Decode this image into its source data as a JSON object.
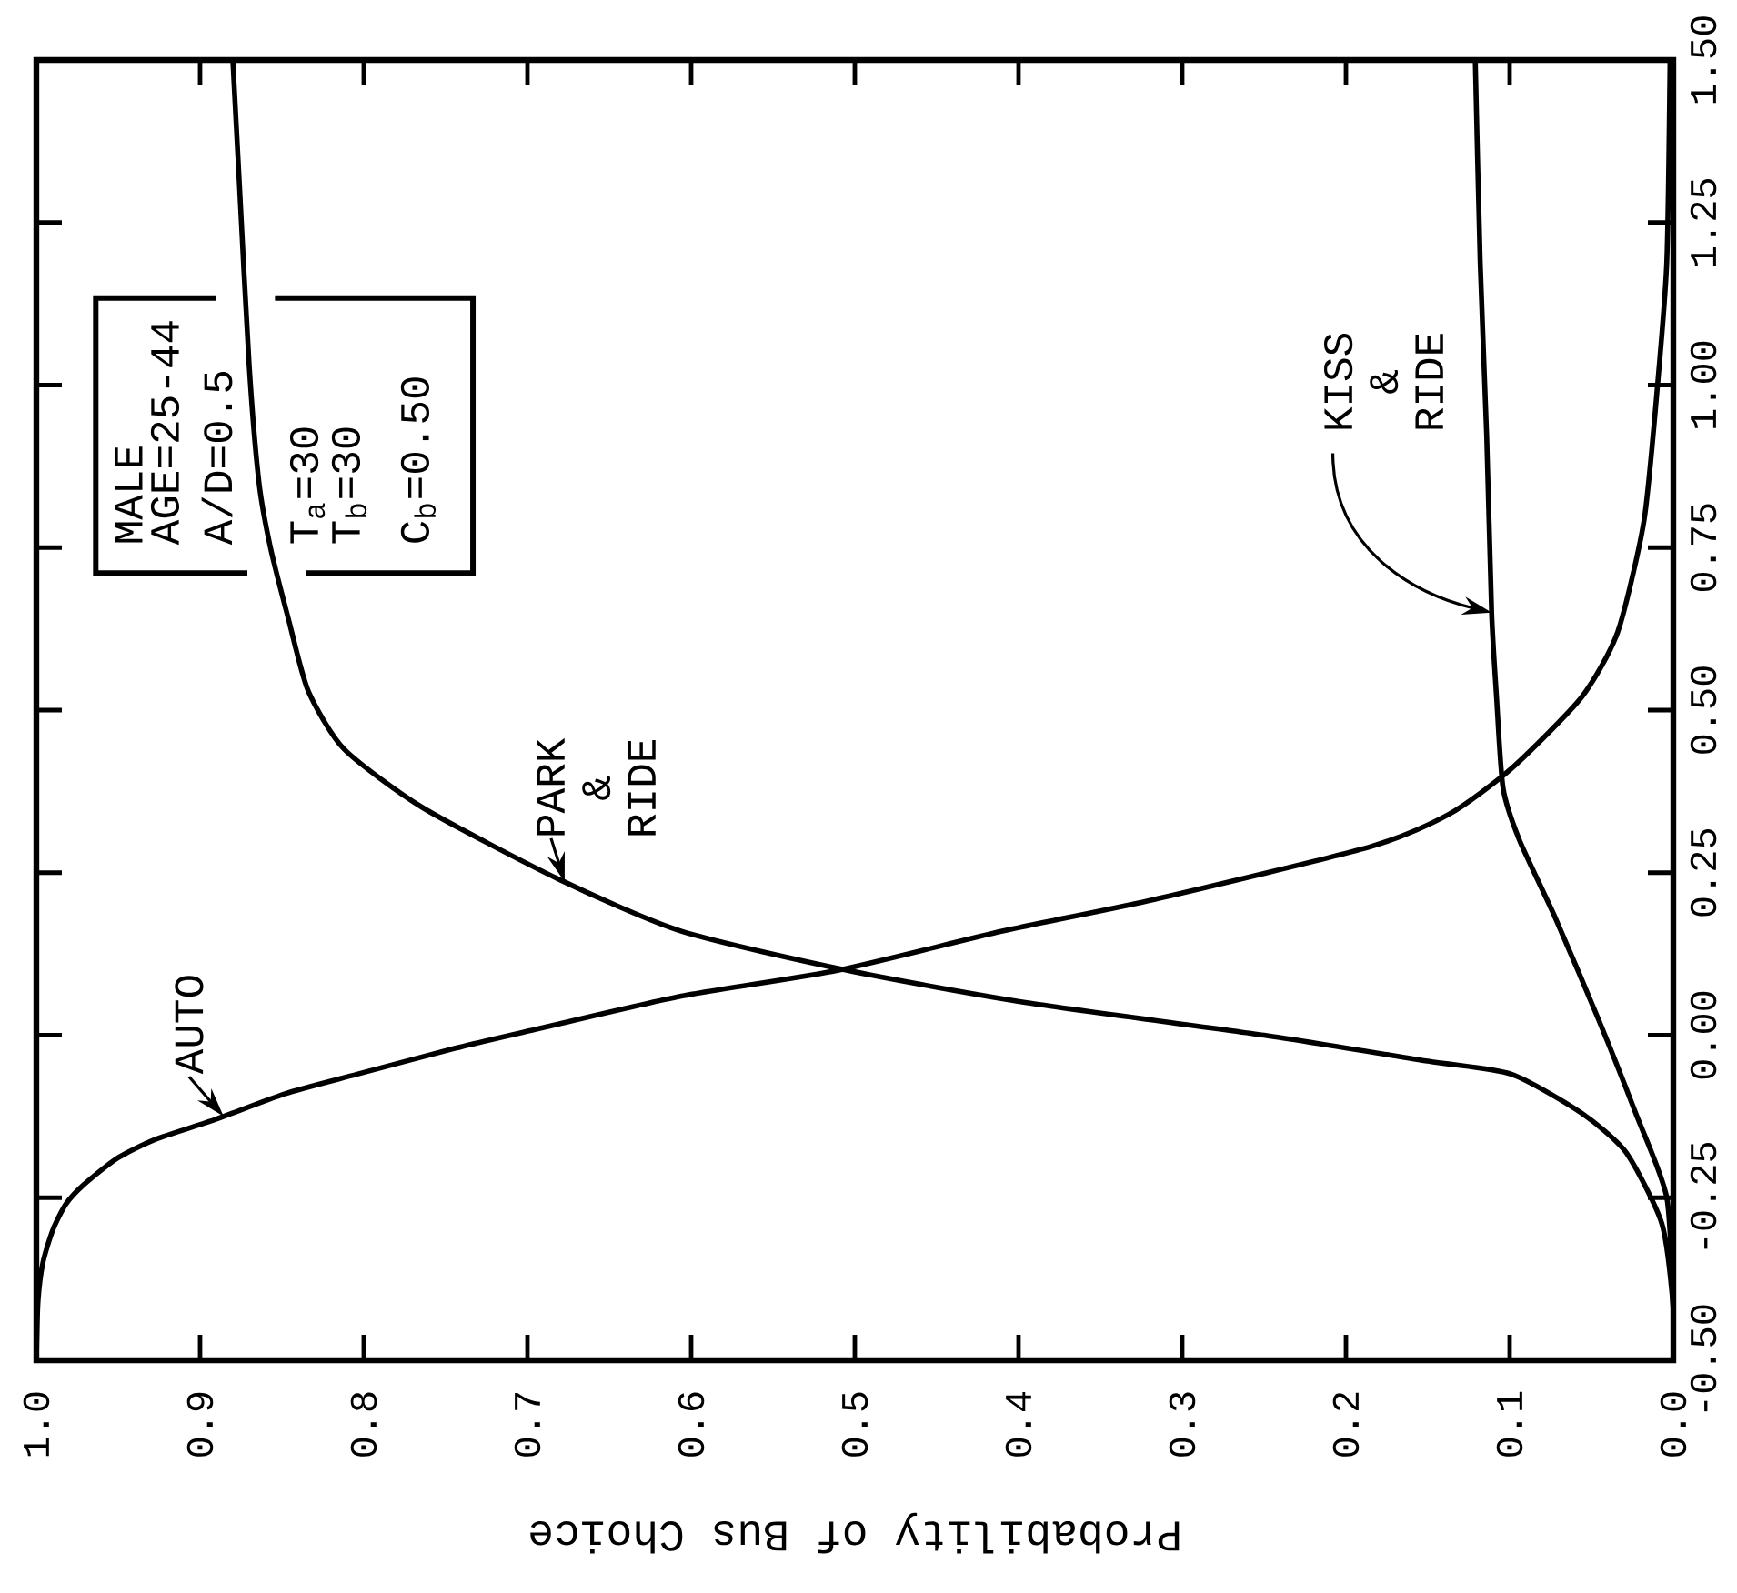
{
  "chart_data": {
    "type": "line",
    "xlabel": "Probability of Bus Choice",
    "annotations": [
      "MALE",
      "AGE=25-44",
      "A/D=0.5",
      "T$_{a}$=30",
      "T$_{b}$=30",
      "C$_{b}$=0.50"
    ],
    "xlim": [
      1,
      0
    ],
    "ylim": [
      -0.5,
      1.5
    ],
    "xticks": [
      {
        "value": 1,
        "label": "1.0"
      },
      0.9,
      0.8,
      0.7,
      0.6,
      0.5,
      0.4,
      0.3,
      0.2,
      0.1,
      {
        "value": 0,
        "label": "0.0"
      }
    ],
    "yticks": [
      {
        "value": -0.5,
        "label": "-0.50"
      },
      -0.25,
      {
        "value": 0,
        "label": "0.00"
      },
      0.25,
      {
        "value": 0.5,
        "label": "0.50"
      },
      0.75,
      {
        "value": 1,
        "label": "1.00"
      },
      1.25,
      {
        "value": 1.5,
        "label": "1.50"
      }
    ],
    "marker": "none",
    "line_style": "solid",
    "series": [
      {
        "name": "AUTO",
        "color": "#000000",
        "x": [
          1.0,
          0.999,
          0.996,
          0.99,
          0.982,
          0.971,
          0.951,
          0.927,
          0.891,
          0.848,
          0.804,
          0.744,
          0.693,
          0.606,
          0.51,
          0.41,
          0.315,
          0.185,
          0.137,
          0.099,
          0.056,
          0.034,
          0.018,
          0.01,
          0.004,
          0.002
        ],
        "values": [
          -0.5,
          -0.41,
          -0.35,
          -0.3,
          -0.26,
          -0.23,
          -0.19,
          -0.16,
          -0.13,
          -0.09,
          -0.06,
          -0.02,
          0.01,
          0.06,
          0.1,
          0.16,
          0.21,
          0.29,
          0.34,
          0.41,
          0.52,
          0.62,
          0.79,
          0.99,
          1.19,
          1.5
        ]
      },
      {
        "name": "PARK & RIDE",
        "color": "#000000",
        "x": [
          0.0,
          0.0,
          0.007,
          0.029,
          0.056,
          0.099,
          0.15,
          0.25,
          0.395,
          0.505,
          0.606,
          0.681,
          0.764,
          0.812,
          0.834,
          0.846,
          0.857,
          0.864,
          0.87,
          0.876,
          0.88
        ],
        "values": [
          -0.5,
          -0.42,
          -0.29,
          -0.18,
          -0.12,
          -0.06,
          -0.04,
          0.0,
          0.05,
          0.1,
          0.16,
          0.24,
          0.35,
          0.44,
          0.53,
          0.64,
          0.75,
          0.85,
          1.03,
          1.31,
          1.5
        ]
      },
      {
        "name": "KISS & RIDE",
        "color": "#000000",
        "x": [
          0.0,
          0.0,
          0.004,
          0.023,
          0.045,
          0.072,
          0.094,
          0.104,
          0.108,
          0.111,
          0.114,
          0.118,
          0.121
        ],
        "values": [
          -0.5,
          -0.43,
          -0.25,
          -0.12,
          0.02,
          0.18,
          0.3,
          0.38,
          0.52,
          0.65,
          0.92,
          1.19,
          1.5
        ]
      }
    ]
  }
}
